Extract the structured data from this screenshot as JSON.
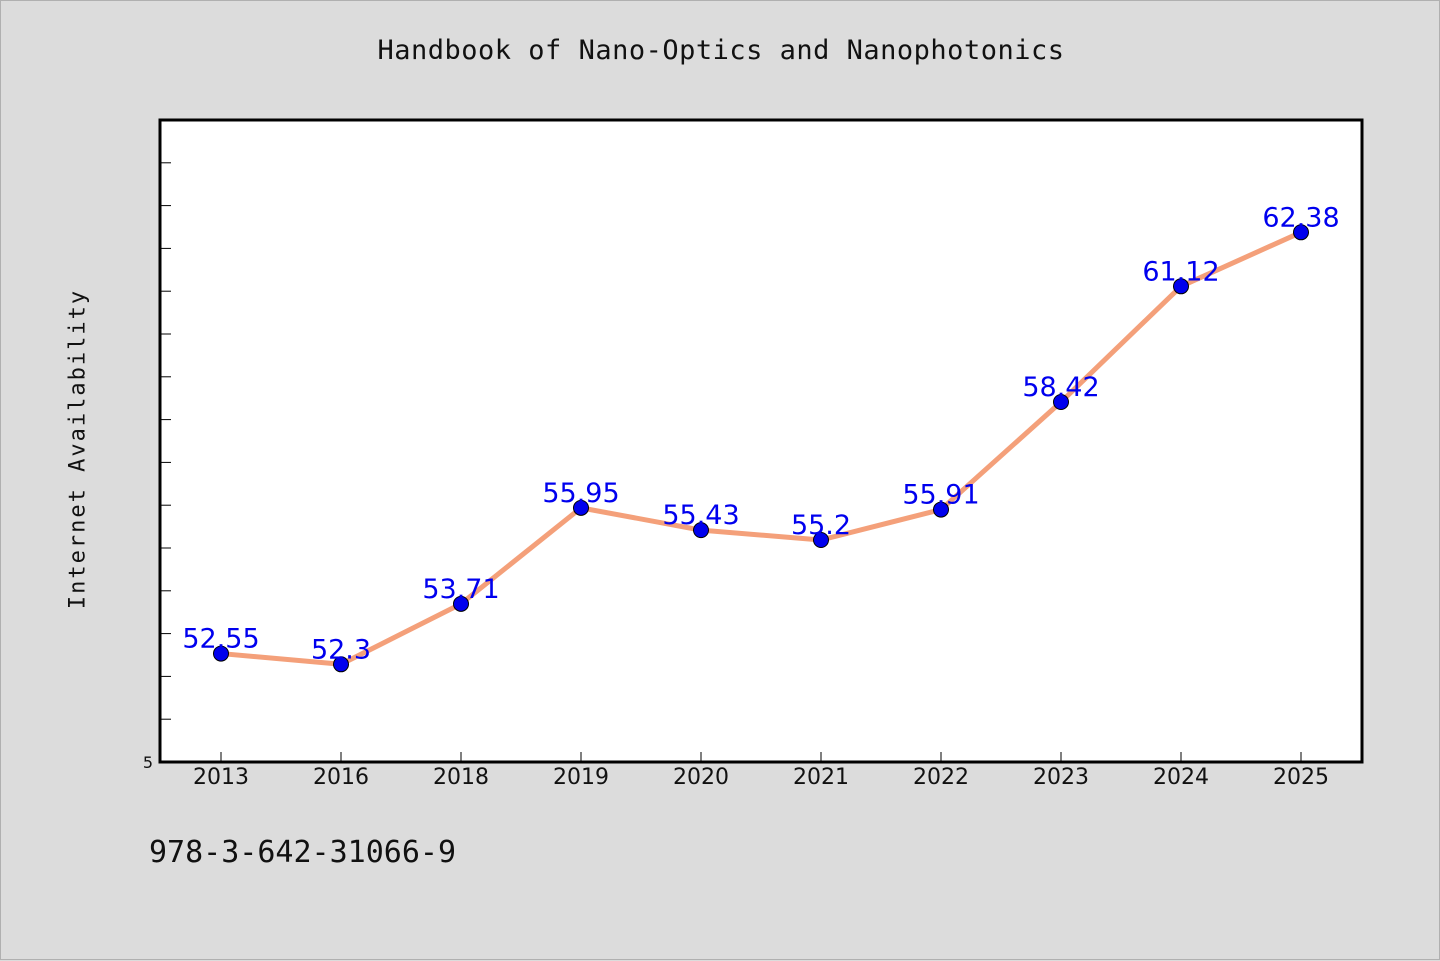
{
  "chart_data": {
    "type": "line",
    "title": "Handbook of Nano-Optics and Nanophotonics",
    "xlabel": "",
    "ylabel": "Internet Availability",
    "categories": [
      "2013",
      "2016",
      "2018",
      "2019",
      "2020",
      "2021",
      "2022",
      "2023",
      "2024",
      "2025"
    ],
    "series": [
      {
        "values": [
          52.55,
          52.3,
          53.71,
          55.95,
          55.43,
          55.2,
          55.91,
          58.42,
          61.12,
          62.38
        ],
        "data_labels": [
          "52.55",
          "52.3",
          "53.71",
          "55.95",
          "55.43",
          "55.2",
          "55.91",
          "58.42",
          "61.12",
          "62.38"
        ]
      }
    ],
    "ylim": [
      50.02,
      65.0
    ],
    "y_tick_labels": [
      "5"
    ],
    "grid": false,
    "line_color": "#f4a07a",
    "marker_color": "#0000ee",
    "label_color": "#0000ee"
  },
  "footer": {
    "code": "978-3-642-31066-9"
  }
}
